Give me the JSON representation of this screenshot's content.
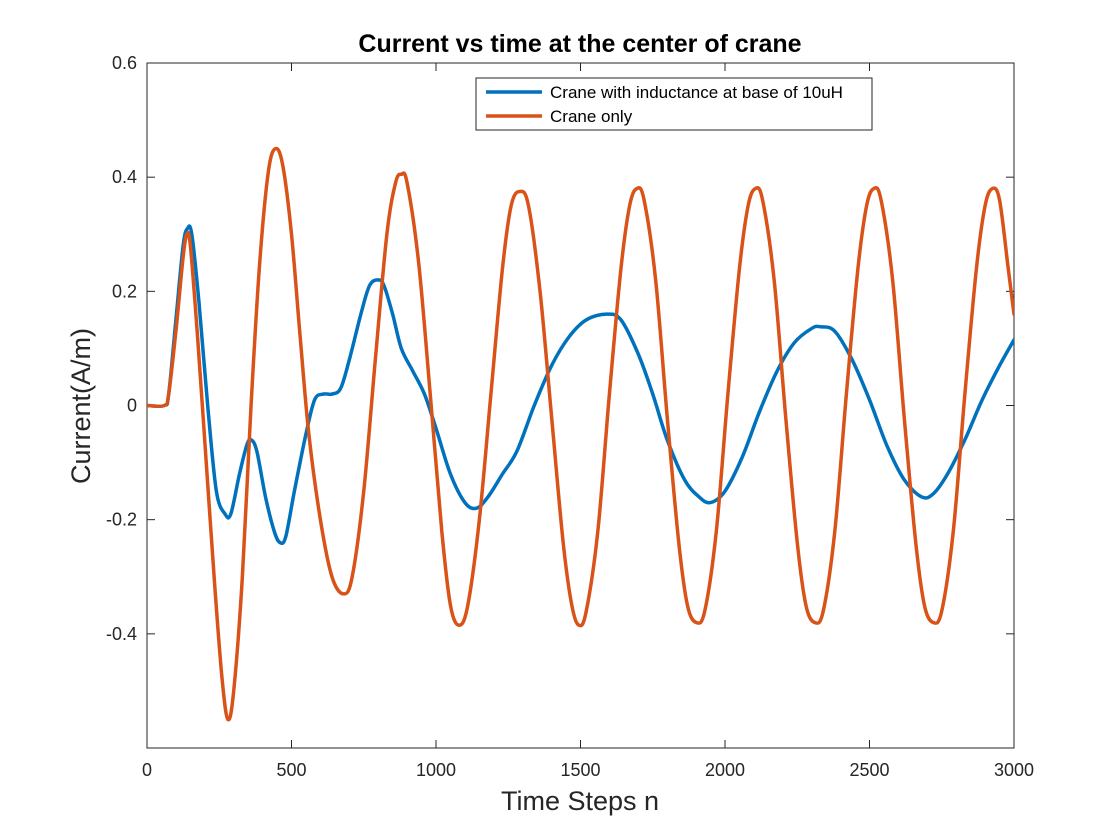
{
  "chart_data": {
    "type": "line",
    "title": "Current vs time at the center of crane",
    "xlabel": "Time Steps n",
    "ylabel": "Current(A/m)",
    "xlim": [
      0,
      3000
    ],
    "ylim": [
      -0.6,
      0.6
    ],
    "xticks": [
      0,
      500,
      1000,
      1500,
      2000,
      2500,
      3000
    ],
    "xtick_labels": [
      "0",
      "500",
      "1000",
      "1500",
      "2000",
      "2500",
      "3000"
    ],
    "yticks": [
      -0.4,
      -0.2,
      0,
      0.2,
      0.4,
      0.6
    ],
    "ytick_labels": [
      "-0.4",
      "-0.2",
      "0",
      "0.2",
      "0.4",
      "0.6"
    ],
    "grid": false,
    "legend_position": "top-center",
    "series": [
      {
        "name": "Crane with inductance at base of 10uH",
        "color": "#0072BD",
        "points": [
          [
            0,
            0
          ],
          [
            60,
            0
          ],
          [
            75,
            0.02
          ],
          [
            100,
            0.15
          ],
          [
            125,
            0.28
          ],
          [
            140,
            0.31
          ],
          [
            155,
            0.3
          ],
          [
            180,
            0.18
          ],
          [
            210,
            0.0
          ],
          [
            240,
            -0.15
          ],
          [
            270,
            -0.19
          ],
          [
            290,
            -0.19
          ],
          [
            320,
            -0.12
          ],
          [
            345,
            -0.07
          ],
          [
            360,
            -0.06
          ],
          [
            380,
            -0.08
          ],
          [
            410,
            -0.16
          ],
          [
            440,
            -0.22
          ],
          [
            460,
            -0.24
          ],
          [
            480,
            -0.23
          ],
          [
            510,
            -0.15
          ],
          [
            550,
            -0.05
          ],
          [
            580,
            0.01
          ],
          [
            610,
            0.02
          ],
          [
            640,
            0.02
          ],
          [
            670,
            0.03
          ],
          [
            700,
            0.08
          ],
          [
            740,
            0.16
          ],
          [
            770,
            0.21
          ],
          [
            800,
            0.22
          ],
          [
            820,
            0.21
          ],
          [
            850,
            0.16
          ],
          [
            880,
            0.1
          ],
          [
            920,
            0.06
          ],
          [
            960,
            0.02
          ],
          [
            1000,
            -0.04
          ],
          [
            1050,
            -0.12
          ],
          [
            1100,
            -0.17
          ],
          [
            1140,
            -0.18
          ],
          [
            1180,
            -0.16
          ],
          [
            1230,
            -0.12
          ],
          [
            1280,
            -0.08
          ],
          [
            1340,
            0.0
          ],
          [
            1400,
            0.07
          ],
          [
            1460,
            0.12
          ],
          [
            1520,
            0.15
          ],
          [
            1590,
            0.16
          ],
          [
            1640,
            0.15
          ],
          [
            1700,
            0.09
          ],
          [
            1750,
            0.02
          ],
          [
            1800,
            -0.06
          ],
          [
            1860,
            -0.13
          ],
          [
            1910,
            -0.16
          ],
          [
            1950,
            -0.17
          ],
          [
            2000,
            -0.15
          ],
          [
            2060,
            -0.09
          ],
          [
            2120,
            -0.01
          ],
          [
            2180,
            0.06
          ],
          [
            2240,
            0.11
          ],
          [
            2300,
            0.135
          ],
          [
            2330,
            0.138
          ],
          [
            2380,
            0.13
          ],
          [
            2440,
            0.08
          ],
          [
            2500,
            0.01
          ],
          [
            2560,
            -0.07
          ],
          [
            2620,
            -0.13
          ],
          [
            2680,
            -0.16
          ],
          [
            2720,
            -0.155
          ],
          [
            2770,
            -0.12
          ],
          [
            2830,
            -0.06
          ],
          [
            2890,
            0.01
          ],
          [
            2950,
            0.07
          ],
          [
            3000,
            0.115
          ]
        ]
      },
      {
        "name": "Crane only",
        "color": "#D95319",
        "points": [
          [
            0,
            0
          ],
          [
            60,
            0
          ],
          [
            75,
            0.02
          ],
          [
            100,
            0.13
          ],
          [
            125,
            0.26
          ],
          [
            138,
            0.3
          ],
          [
            150,
            0.28
          ],
          [
            175,
            0.12
          ],
          [
            205,
            -0.1
          ],
          [
            235,
            -0.32
          ],
          [
            260,
            -0.48
          ],
          [
            280,
            -0.55
          ],
          [
            300,
            -0.5
          ],
          [
            330,
            -0.3
          ],
          [
            360,
            0.0
          ],
          [
            390,
            0.25
          ],
          [
            420,
            0.41
          ],
          [
            445,
            0.45
          ],
          [
            470,
            0.42
          ],
          [
            500,
            0.3
          ],
          [
            530,
            0.12
          ],
          [
            560,
            -0.05
          ],
          [
            600,
            -0.2
          ],
          [
            640,
            -0.3
          ],
          [
            680,
            -0.33
          ],
          [
            710,
            -0.3
          ],
          [
            750,
            -0.15
          ],
          [
            790,
            0.08
          ],
          [
            830,
            0.3
          ],
          [
            860,
            0.39
          ],
          [
            880,
            0.405
          ],
          [
            900,
            0.39
          ],
          [
            940,
            0.25
          ],
          [
            980,
            0.02
          ],
          [
            1020,
            -0.22
          ],
          [
            1050,
            -0.35
          ],
          [
            1080,
            -0.385
          ],
          [
            1110,
            -0.35
          ],
          [
            1150,
            -0.2
          ],
          [
            1190,
            0.02
          ],
          [
            1230,
            0.24
          ],
          [
            1260,
            0.35
          ],
          [
            1290,
            0.375
          ],
          [
            1320,
            0.35
          ],
          [
            1360,
            0.2
          ],
          [
            1400,
            -0.02
          ],
          [
            1440,
            -0.24
          ],
          [
            1470,
            -0.35
          ],
          [
            1495,
            -0.385
          ],
          [
            1520,
            -0.36
          ],
          [
            1560,
            -0.22
          ],
          [
            1600,
            0.02
          ],
          [
            1640,
            0.24
          ],
          [
            1670,
            0.35
          ],
          [
            1695,
            0.38
          ],
          [
            1720,
            0.36
          ],
          [
            1760,
            0.22
          ],
          [
            1800,
            -0.02
          ],
          [
            1840,
            -0.24
          ],
          [
            1870,
            -0.35
          ],
          [
            1900,
            -0.38
          ],
          [
            1930,
            -0.36
          ],
          [
            1970,
            -0.22
          ],
          [
            2010,
            0.02
          ],
          [
            2050,
            0.24
          ],
          [
            2080,
            0.35
          ],
          [
            2105,
            0.38
          ],
          [
            2130,
            0.36
          ],
          [
            2170,
            0.22
          ],
          [
            2210,
            -0.02
          ],
          [
            2250,
            -0.24
          ],
          [
            2280,
            -0.35
          ],
          [
            2310,
            -0.38
          ],
          [
            2340,
            -0.36
          ],
          [
            2380,
            -0.22
          ],
          [
            2420,
            0.02
          ],
          [
            2460,
            0.24
          ],
          [
            2490,
            0.35
          ],
          [
            2515,
            0.38
          ],
          [
            2540,
            0.36
          ],
          [
            2580,
            0.22
          ],
          [
            2620,
            -0.02
          ],
          [
            2660,
            -0.24
          ],
          [
            2690,
            -0.35
          ],
          [
            2720,
            -0.38
          ],
          [
            2750,
            -0.36
          ],
          [
            2790,
            -0.22
          ],
          [
            2830,
            0.02
          ],
          [
            2870,
            0.24
          ],
          [
            2900,
            0.35
          ],
          [
            2925,
            0.38
          ],
          [
            2950,
            0.36
          ],
          [
            2980,
            0.24
          ],
          [
            3000,
            0.16
          ]
        ]
      }
    ]
  }
}
